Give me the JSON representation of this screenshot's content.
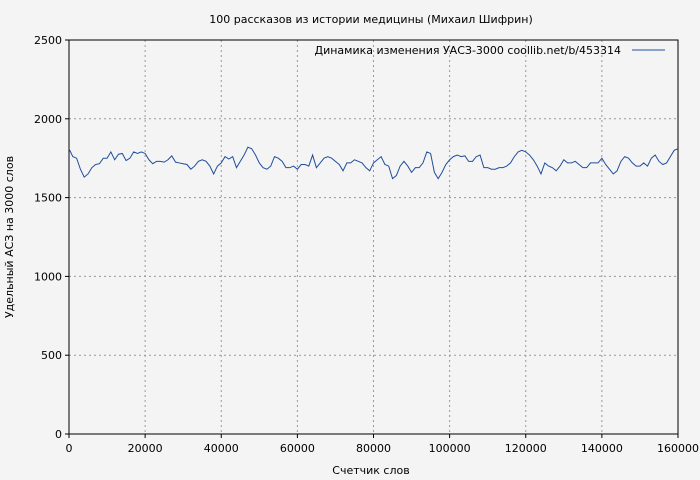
{
  "chart_data": {
    "type": "line",
    "title": "100 рассказов из истории медицины (Михаил Шифрин)",
    "xlabel": "Счетчик слов",
    "ylabel": "Удельный АСЗ на 3000 слов",
    "xlim": [
      0,
      160000
    ],
    "ylim": [
      0,
      2500
    ],
    "xticks": [
      0,
      20000,
      40000,
      60000,
      80000,
      100000,
      120000,
      140000,
      160000
    ],
    "yticks": [
      0,
      500,
      1000,
      1500,
      2000,
      2500
    ],
    "grid": true,
    "legend_position": "top-right",
    "series": [
      {
        "name": "Динамика изменения УАСЗ-3000  coollib.net/b/453314",
        "color": "#1f4e9c",
        "points": [
          [
            0,
            1810
          ],
          [
            1000,
            1760
          ],
          [
            2000,
            1750
          ],
          [
            3000,
            1680
          ],
          [
            4000,
            1630
          ],
          [
            5000,
            1650
          ],
          [
            6000,
            1690
          ],
          [
            7000,
            1710
          ],
          [
            8000,
            1715
          ],
          [
            9000,
            1750
          ],
          [
            10000,
            1750
          ],
          [
            11000,
            1790
          ],
          [
            12000,
            1740
          ],
          [
            13000,
            1775
          ],
          [
            14000,
            1780
          ],
          [
            15000,
            1735
          ],
          [
            16000,
            1750
          ],
          [
            17000,
            1790
          ],
          [
            18000,
            1780
          ],
          [
            19000,
            1790
          ],
          [
            20000,
            1780
          ],
          [
            21000,
            1740
          ],
          [
            22000,
            1715
          ],
          [
            23000,
            1730
          ],
          [
            24000,
            1730
          ],
          [
            25000,
            1725
          ],
          [
            26000,
            1740
          ],
          [
            27000,
            1765
          ],
          [
            28000,
            1725
          ],
          [
            29000,
            1720
          ],
          [
            30000,
            1715
          ],
          [
            31000,
            1710
          ],
          [
            32000,
            1680
          ],
          [
            33000,
            1700
          ],
          [
            34000,
            1730
          ],
          [
            35000,
            1740
          ],
          [
            36000,
            1730
          ],
          [
            37000,
            1700
          ],
          [
            38000,
            1650
          ],
          [
            39000,
            1700
          ],
          [
            40000,
            1720
          ],
          [
            41000,
            1760
          ],
          [
            42000,
            1745
          ],
          [
            43000,
            1760
          ],
          [
            44000,
            1690
          ],
          [
            45000,
            1730
          ],
          [
            46000,
            1770
          ],
          [
            47000,
            1820
          ],
          [
            48000,
            1810
          ],
          [
            49000,
            1770
          ],
          [
            50000,
            1720
          ],
          [
            51000,
            1690
          ],
          [
            52000,
            1680
          ],
          [
            53000,
            1700
          ],
          [
            54000,
            1760
          ],
          [
            55000,
            1750
          ],
          [
            56000,
            1730
          ],
          [
            57000,
            1690
          ],
          [
            58000,
            1690
          ],
          [
            59000,
            1700
          ],
          [
            60000,
            1680
          ],
          [
            61000,
            1710
          ],
          [
            62000,
            1710
          ],
          [
            63000,
            1700
          ],
          [
            64000,
            1770
          ],
          [
            65000,
            1690
          ],
          [
            66000,
            1720
          ],
          [
            67000,
            1750
          ],
          [
            68000,
            1760
          ],
          [
            69000,
            1750
          ],
          [
            70000,
            1730
          ],
          [
            71000,
            1710
          ],
          [
            72000,
            1670
          ],
          [
            73000,
            1720
          ],
          [
            74000,
            1720
          ],
          [
            75000,
            1740
          ],
          [
            76000,
            1730
          ],
          [
            77000,
            1720
          ],
          [
            78000,
            1690
          ],
          [
            79000,
            1670
          ],
          [
            80000,
            1720
          ],
          [
            81000,
            1740
          ],
          [
            82000,
            1760
          ],
          [
            83000,
            1710
          ],
          [
            84000,
            1700
          ],
          [
            85000,
            1620
          ],
          [
            86000,
            1640
          ],
          [
            87000,
            1700
          ],
          [
            88000,
            1730
          ],
          [
            89000,
            1700
          ],
          [
            90000,
            1660
          ],
          [
            91000,
            1690
          ],
          [
            92000,
            1690
          ],
          [
            93000,
            1720
          ],
          [
            94000,
            1790
          ],
          [
            95000,
            1780
          ],
          [
            96000,
            1660
          ],
          [
            97000,
            1620
          ],
          [
            98000,
            1660
          ],
          [
            99000,
            1710
          ],
          [
            100000,
            1740
          ],
          [
            101000,
            1760
          ],
          [
            102000,
            1770
          ],
          [
            103000,
            1760
          ],
          [
            104000,
            1765
          ],
          [
            105000,
            1730
          ],
          [
            106000,
            1730
          ],
          [
            107000,
            1760
          ],
          [
            108000,
            1770
          ],
          [
            109000,
            1690
          ],
          [
            110000,
            1690
          ],
          [
            111000,
            1680
          ],
          [
            112000,
            1680
          ],
          [
            113000,
            1690
          ],
          [
            114000,
            1690
          ],
          [
            115000,
            1700
          ],
          [
            116000,
            1720
          ],
          [
            117000,
            1760
          ],
          [
            118000,
            1790
          ],
          [
            119000,
            1800
          ],
          [
            120000,
            1790
          ],
          [
            121000,
            1770
          ],
          [
            122000,
            1740
          ],
          [
            123000,
            1700
          ],
          [
            124000,
            1650
          ],
          [
            125000,
            1720
          ],
          [
            126000,
            1700
          ],
          [
            127000,
            1690
          ],
          [
            128000,
            1670
          ],
          [
            129000,
            1700
          ],
          [
            130000,
            1740
          ],
          [
            131000,
            1720
          ],
          [
            132000,
            1720
          ],
          [
            133000,
            1730
          ],
          [
            134000,
            1710
          ],
          [
            135000,
            1690
          ],
          [
            136000,
            1690
          ],
          [
            137000,
            1720
          ],
          [
            138000,
            1720
          ],
          [
            139000,
            1720
          ],
          [
            140000,
            1750
          ],
          [
            141000,
            1710
          ],
          [
            142000,
            1680
          ],
          [
            143000,
            1650
          ],
          [
            144000,
            1670
          ],
          [
            145000,
            1730
          ],
          [
            146000,
            1760
          ],
          [
            147000,
            1750
          ],
          [
            148000,
            1720
          ],
          [
            149000,
            1700
          ],
          [
            150000,
            1700
          ],
          [
            151000,
            1720
          ],
          [
            152000,
            1700
          ],
          [
            153000,
            1750
          ],
          [
            154000,
            1770
          ],
          [
            155000,
            1730
          ],
          [
            156000,
            1710
          ],
          [
            157000,
            1720
          ],
          [
            158000,
            1760
          ],
          [
            159000,
            1800
          ],
          [
            160000,
            1810
          ]
        ]
      }
    ]
  }
}
